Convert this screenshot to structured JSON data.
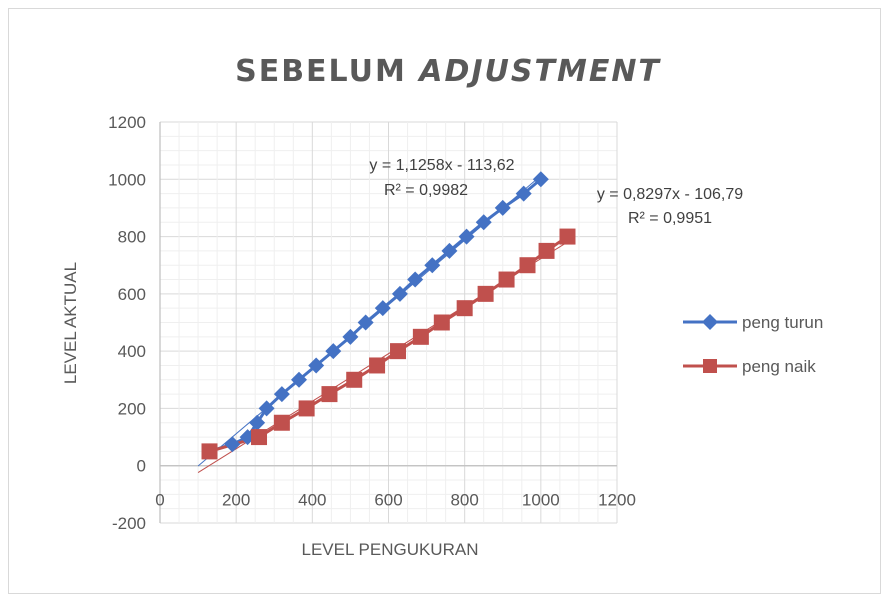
{
  "chart_data": {
    "type": "scatter",
    "title_part1": "SEBELUM ",
    "title_part2": "ADJUSTMENT",
    "xlabel": "LEVEL PENGUKURAN",
    "ylabel": "LEVEL AKTUAL",
    "xlim": [
      0,
      1200
    ],
    "ylim": [
      -200,
      1200
    ],
    "xticks": [
      "0",
      "200",
      "400",
      "600",
      "800",
      "1000",
      "1200"
    ],
    "yticks": [
      "-200",
      "0",
      "200",
      "400",
      "600",
      "800",
      "1000",
      "1200"
    ],
    "grid": true,
    "legend_position": "right",
    "series": [
      {
        "name": "peng turun",
        "color": "#4472c4",
        "marker": "diamond",
        "x": [
          130,
          190,
          230,
          255,
          280,
          320,
          365,
          410,
          455,
          500,
          540,
          585,
          630,
          670,
          715,
          760,
          805,
          850,
          900,
          955,
          1000
        ],
        "y": [
          50,
          75,
          100,
          150,
          200,
          250,
          300,
          350,
          400,
          450,
          500,
          550,
          600,
          650,
          700,
          750,
          800,
          850,
          900,
          950,
          1000
        ],
        "trendline": {
          "slope": 1.1258,
          "intercept": -113.62,
          "equation": "y = 1,1258x - 113,62",
          "r2": "R² = 0,9982"
        }
      },
      {
        "name": "peng naik",
        "color": "#c0504d",
        "marker": "square",
        "x": [
          130,
          260,
          320,
          385,
          445,
          510,
          570,
          625,
          685,
          740,
          800,
          855,
          910,
          965,
          1015,
          1070
        ],
        "y": [
          50,
          100,
          150,
          200,
          250,
          300,
          350,
          400,
          450,
          500,
          550,
          600,
          650,
          700,
          750,
          800
        ],
        "trendline": {
          "slope": 0.8297,
          "intercept": -106.79,
          "equation": "y = 0,8297x - 106,79",
          "r2": "R² = 0,9951"
        }
      }
    ]
  }
}
